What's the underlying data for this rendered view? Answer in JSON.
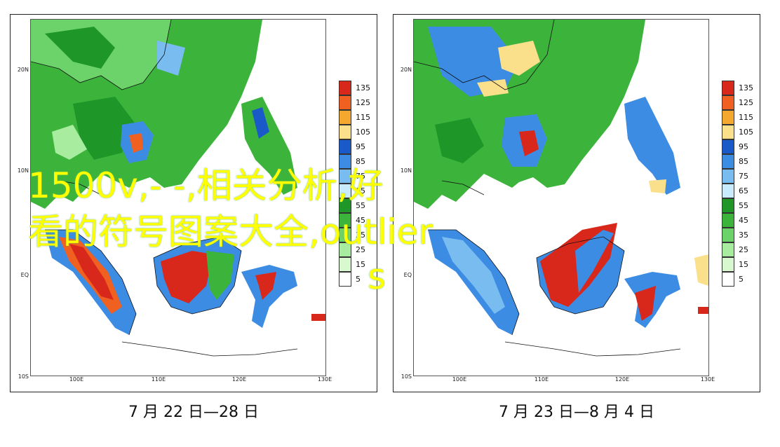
{
  "panels": [
    {
      "id": "left",
      "lat_ticks": [
        "20N",
        "10N",
        "EQ",
        "10S"
      ],
      "lon_ticks": [
        "100E",
        "110E",
        "120E",
        "130E"
      ],
      "legend": [
        "135",
        "125",
        "115",
        "105",
        "95",
        "85",
        "75",
        "65",
        "55",
        "45",
        "35",
        "25",
        "15",
        "5"
      ],
      "caption": "7 月 22 日—28 日"
    },
    {
      "id": "right",
      "lat_ticks": [
        "20N",
        "10N",
        "EQ",
        "10S"
      ],
      "lon_ticks": [
        "100E",
        "110E",
        "120E",
        "130E"
      ],
      "legend": [
        "135",
        "125",
        "115",
        "105",
        "95",
        "85",
        "75",
        "65",
        "55",
        "45",
        "35",
        "25",
        "15",
        "5"
      ],
      "caption": "7 月 23 日—8 月 4 日"
    }
  ],
  "legend_colors": [
    "#d8281c",
    "#f06020",
    "#f5a830",
    "#fbe08c",
    "#1a5ac8",
    "#3c8ce4",
    "#78bcf0",
    "#c8ecfc",
    "#1e9628",
    "#3cb43c",
    "#6cd26a",
    "#a8eca0",
    "#d8f8d0",
    "#ffffff"
  ],
  "overlay": {
    "line1": "1500v,- -,相关分析,好",
    "line2": "看的符号图案大全,outlier",
    "line3": "s"
  }
}
